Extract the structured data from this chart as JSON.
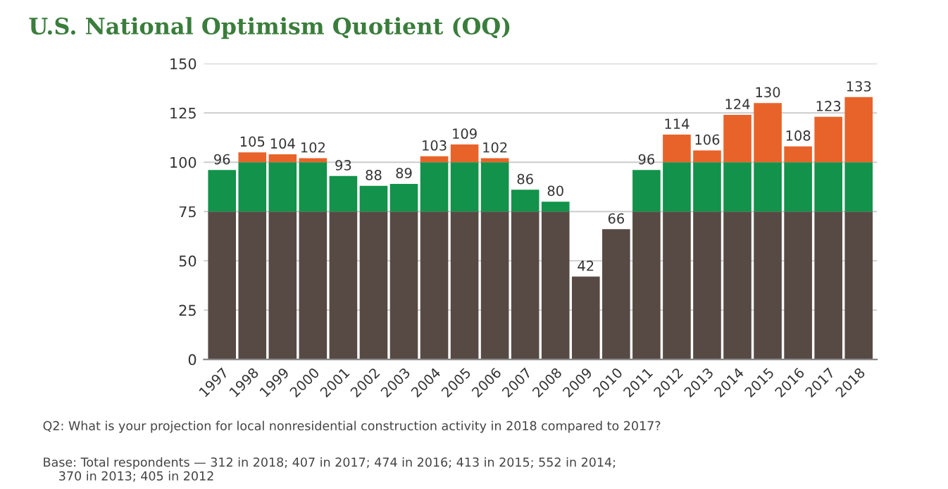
{
  "chart_data": {
    "type": "bar",
    "stacked": true,
    "title": "U.S. National Optimism Quotient (OQ)",
    "categories": [
      "1997",
      "1998",
      "1999",
      "2000",
      "2001",
      "2002",
      "2003",
      "2004",
      "2005",
      "2006",
      "2007",
      "2008",
      "2009",
      "2010",
      "2011",
      "2012",
      "2013",
      "2014",
      "2015",
      "2016",
      "2017",
      "2018"
    ],
    "series": [
      {
        "color": "#574a44",
        "values": [
          75,
          75,
          75,
          75,
          75,
          75,
          75,
          75,
          75,
          75,
          75,
          75,
          42,
          66,
          75,
          75,
          75,
          75,
          75,
          75,
          75,
          75
        ]
      },
      {
        "color": "#12924a",
        "values": [
          21,
          25,
          25,
          25,
          18,
          13,
          14,
          25,
          25,
          25,
          11,
          5,
          null,
          null,
          21,
          25,
          25,
          25,
          25,
          25,
          25,
          25
        ]
      },
      {
        "color": "#e8632a",
        "values": [
          null,
          5,
          4,
          2,
          null,
          null,
          null,
          3,
          9,
          2,
          null,
          null,
          null,
          null,
          null,
          14,
          6,
          24,
          30,
          8,
          23,
          33
        ]
      }
    ],
    "totals": [
      "96",
      "105",
      "104",
      "102",
      "93",
      "88",
      "89",
      "103",
      "109",
      "102",
      "86",
      "80",
      "42",
      "66",
      "96",
      "114",
      "106",
      "124",
      "130",
      "108",
      "123",
      "133"
    ],
    "ylim": [
      0,
      150
    ],
    "yticks": [
      0,
      25,
      50,
      75,
      100,
      125,
      150
    ],
    "grid": "y",
    "annotations": [
      "Q2: What is your projection for local nonresidential construction activity in 2018 compared to 2017?",
      "Base: Total respondents — 312 in 2018; 407 in 2017; 474 in 2016; 413 in 2015; 552 in 2014;\n    370 in 2013; 405 in 2012"
    ]
  }
}
